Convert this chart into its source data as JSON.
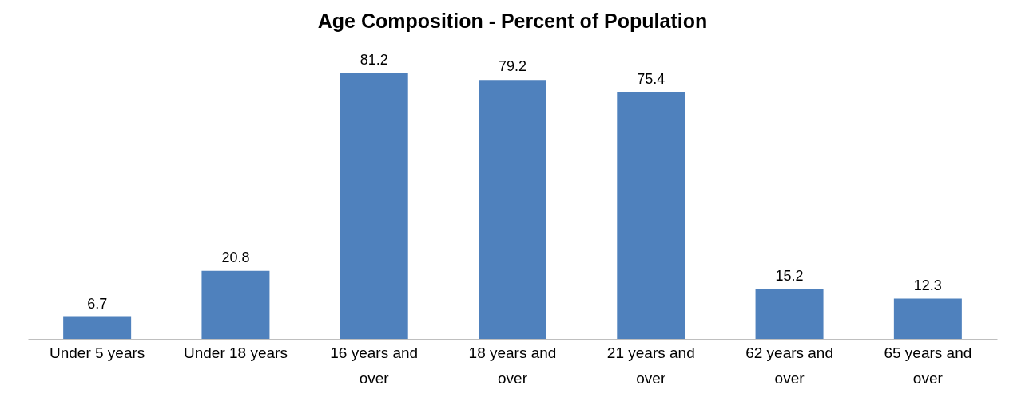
{
  "chart_data": {
    "type": "bar",
    "title": "Age Composition - Percent of Population",
    "categories": [
      "Under 5 years",
      "Under 18 years",
      "16 years and over",
      "18 years and over",
      "21 years and over",
      "62 years and over",
      "65 years and over"
    ],
    "values": [
      6.7,
      20.8,
      81.2,
      79.2,
      75.4,
      15.2,
      12.3
    ],
    "color": "#4f81bd",
    "data_labels": true
  }
}
